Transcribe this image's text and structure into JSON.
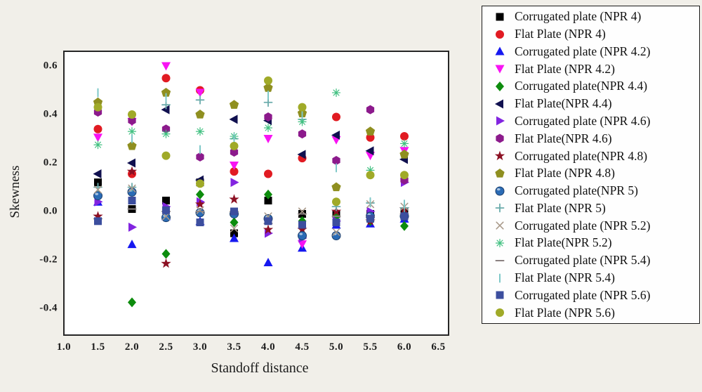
{
  "background_color": "#f1efe9",
  "plot": {
    "bg": "#ffffff",
    "border_color": "#262626"
  },
  "chart_data": {
    "type": "scatter",
    "title": "",
    "xlabel": "Standoff distance",
    "ylabel": "Skewness",
    "xlim": [
      1.0,
      6.5
    ],
    "ylim": [
      -0.51,
      0.66
    ],
    "grid": false,
    "legend_position": "right-outside",
    "x_ticks": [
      "1.0",
      "1.5",
      "2.0",
      "2.5",
      "3.0",
      "3.5",
      "4.0",
      "4.5",
      "5.0",
      "5.5",
      "6.0",
      "6.5"
    ],
    "x_tick_values": [
      1.0,
      1.5,
      2.0,
      2.5,
      3.0,
      3.5,
      4.0,
      4.5,
      5.0,
      5.5,
      6.0,
      6.5
    ],
    "y_ticks": [
      "0.6",
      "0.4",
      "0.2",
      "0.0",
      "-0.2",
      "-0.4"
    ],
    "y_tick_values": [
      0.6,
      0.4,
      0.2,
      0.0,
      -0.2,
      -0.4
    ],
    "x": [
      1.5,
      2.0,
      2.5,
      3.0,
      3.5,
      4.0,
      4.5,
      5.0,
      5.5,
      6.0
    ],
    "series": [
      {
        "name": "Corrugated plate (NPR 4)",
        "marker": "square",
        "color": "#000000",
        "values": [
          0.12,
          0.01,
          0.045,
          0.12,
          -0.09,
          0.045,
          -0.01,
          -0.01,
          -0.01,
          -0.005
        ]
      },
      {
        "name": "Flat Plate (NPR 4)",
        "marker": "circle",
        "color": "#e11b22",
        "values": [
          0.34,
          0.155,
          0.55,
          0.5,
          0.165,
          0.155,
          0.22,
          0.39,
          0.305,
          0.31
        ]
      },
      {
        "name": "Corrugated plate (NPR 4.2)",
        "marker": "triangle-up",
        "color": "#1618f0",
        "values": [
          0.04,
          -0.135,
          -0.02,
          -0.04,
          -0.11,
          -0.21,
          -0.15,
          -0.055,
          -0.05,
          -0.03
        ]
      },
      {
        "name": "Flat Plate (NPR 4.2)",
        "marker": "triangle-down",
        "color": "#f813f3",
        "values": [
          0.305,
          0.37,
          0.6,
          0.49,
          0.19,
          0.3,
          -0.135,
          0.295,
          0.23,
          0.25
        ]
      },
      {
        "name": "Corrugated plate(NPR 4.4)",
        "marker": "diamond",
        "color": "#0d8c0d",
        "values": [
          0.06,
          -0.375,
          -0.175,
          0.07,
          -0.045,
          0.07,
          -0.04,
          -0.02,
          -0.04,
          -0.06
        ]
      },
      {
        "name": "Flat Plate(NPR 4.4)",
        "marker": "triangle-left",
        "color": "#10104f",
        "values": [
          0.155,
          0.2,
          0.42,
          0.13,
          0.38,
          0.375,
          0.235,
          0.315,
          0.25,
          0.215
        ]
      },
      {
        "name": "Corrugated plate (NPR 4.6)",
        "marker": "triangle-right",
        "color": "#8224e0",
        "values": [
          0.04,
          -0.065,
          0.02,
          0.04,
          0.12,
          -0.09,
          -0.11,
          -0.04,
          0.0,
          0.12
        ]
      },
      {
        "name": "Flat Plate(NPR 4.6)",
        "marker": "hexagon",
        "color": "#8c1a8c",
        "values": [
          0.41,
          0.375,
          0.34,
          0.225,
          0.245,
          0.39,
          0.32,
          0.21,
          0.42,
          0.13
        ]
      },
      {
        "name": "Corrugated plate(NPR 4.8)",
        "marker": "star",
        "color": "#8c1023",
        "values": [
          -0.02,
          0.165,
          -0.215,
          0.03,
          0.05,
          -0.075,
          -0.075,
          0.0,
          -0.04,
          0.01
        ]
      },
      {
        "name": "Flat Plate (NPR 4.8)",
        "marker": "pentagon",
        "color": "#8f8f20",
        "values": [
          0.45,
          0.27,
          0.49,
          0.4,
          0.44,
          0.51,
          0.405,
          0.1,
          0.33,
          0.235
        ]
      },
      {
        "name": "Corrugated plate(NPR 5)",
        "marker": "sphere",
        "color": "#2a6bb5",
        "values": [
          0.065,
          0.08,
          -0.025,
          -0.005,
          -0.01,
          -0.03,
          -0.1,
          -0.1,
          -0.02,
          -0.02
        ]
      },
      {
        "name": "Flat Plate (NPR 5)",
        "marker": "plus",
        "color": "#6aabab",
        "values": [
          0.1,
          0.1,
          0.44,
          0.46,
          0.3,
          0.45,
          0.38,
          0.02,
          0.035,
          0.015
        ]
      },
      {
        "name": "Corrugated plate (NPR 5.2)",
        "marker": "x",
        "color": "#a89888",
        "values": [
          0.09,
          0.095,
          -0.02,
          0.005,
          -0.07,
          -0.02,
          0.0,
          -0.085,
          0.03,
          0.02
        ]
      },
      {
        "name": "Flat Plate(NPR 5.2)",
        "marker": "asterisk",
        "color": "#40c080",
        "values": [
          0.275,
          0.33,
          0.32,
          0.33,
          0.31,
          0.345,
          0.37,
          0.49,
          0.17,
          0.28
        ]
      },
      {
        "name": "Corrugated plate (NPR 5.4)",
        "marker": "dash",
        "color": "#8a8080",
        "values": [
          -0.03,
          0.01,
          0.0,
          0.0,
          0.0,
          -0.05,
          -0.01,
          -0.02,
          -0.02,
          -0.01
        ]
      },
      {
        "name": "Flat Plate (NPR 5.4)",
        "marker": "vline",
        "color": "#7ec8c8",
        "values": [
          0.49,
          0.3,
          0.47,
          0.255,
          0.305,
          0.48,
          0.4,
          0.18,
          0.04,
          0.03
        ]
      },
      {
        "name": "Corrugated plate (NPR 5.6)",
        "marker": "square",
        "color": "#3c4e9e",
        "values": [
          -0.04,
          0.045,
          0.005,
          -0.045,
          0.0,
          -0.04,
          -0.055,
          -0.045,
          -0.03,
          -0.02
        ]
      },
      {
        "name": "Flat Plate (NPR 5.6)",
        "marker": "circle",
        "color": "#a0aa28",
        "values": [
          0.43,
          0.4,
          0.23,
          0.115,
          0.27,
          0.54,
          0.43,
          0.04,
          0.15,
          0.15
        ]
      }
    ]
  }
}
